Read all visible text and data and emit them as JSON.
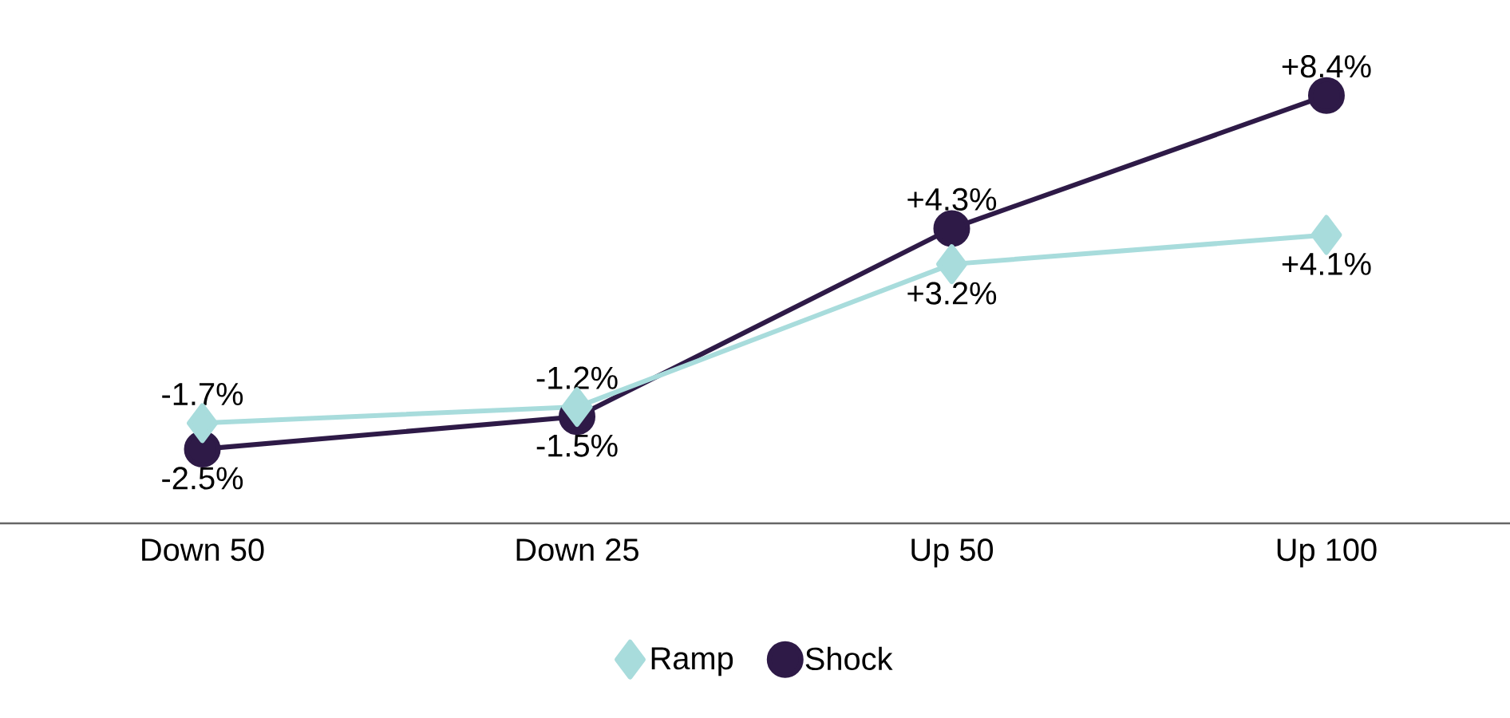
{
  "chart_data": {
    "type": "line",
    "categories": [
      "Down 50",
      "Down 25",
      "Up 50",
      "Up 100"
    ],
    "series": [
      {
        "name": "Ramp",
        "color": "#a8dcdc",
        "marker": "diamond",
        "values": [
          -1.7,
          -1.2,
          3.2,
          4.1
        ],
        "value_labels": [
          "-1.7%",
          "-1.2%",
          "+3.2%",
          "+4.1%"
        ]
      },
      {
        "name": "Shock",
        "color": "#2e1a47",
        "marker": "circle",
        "values": [
          -2.5,
          -1.5,
          4.3,
          8.4
        ],
        "value_labels": [
          "-2.5%",
          "-1.5%",
          "+4.3%",
          "+8.4%"
        ]
      }
    ],
    "legend": "bottom"
  }
}
